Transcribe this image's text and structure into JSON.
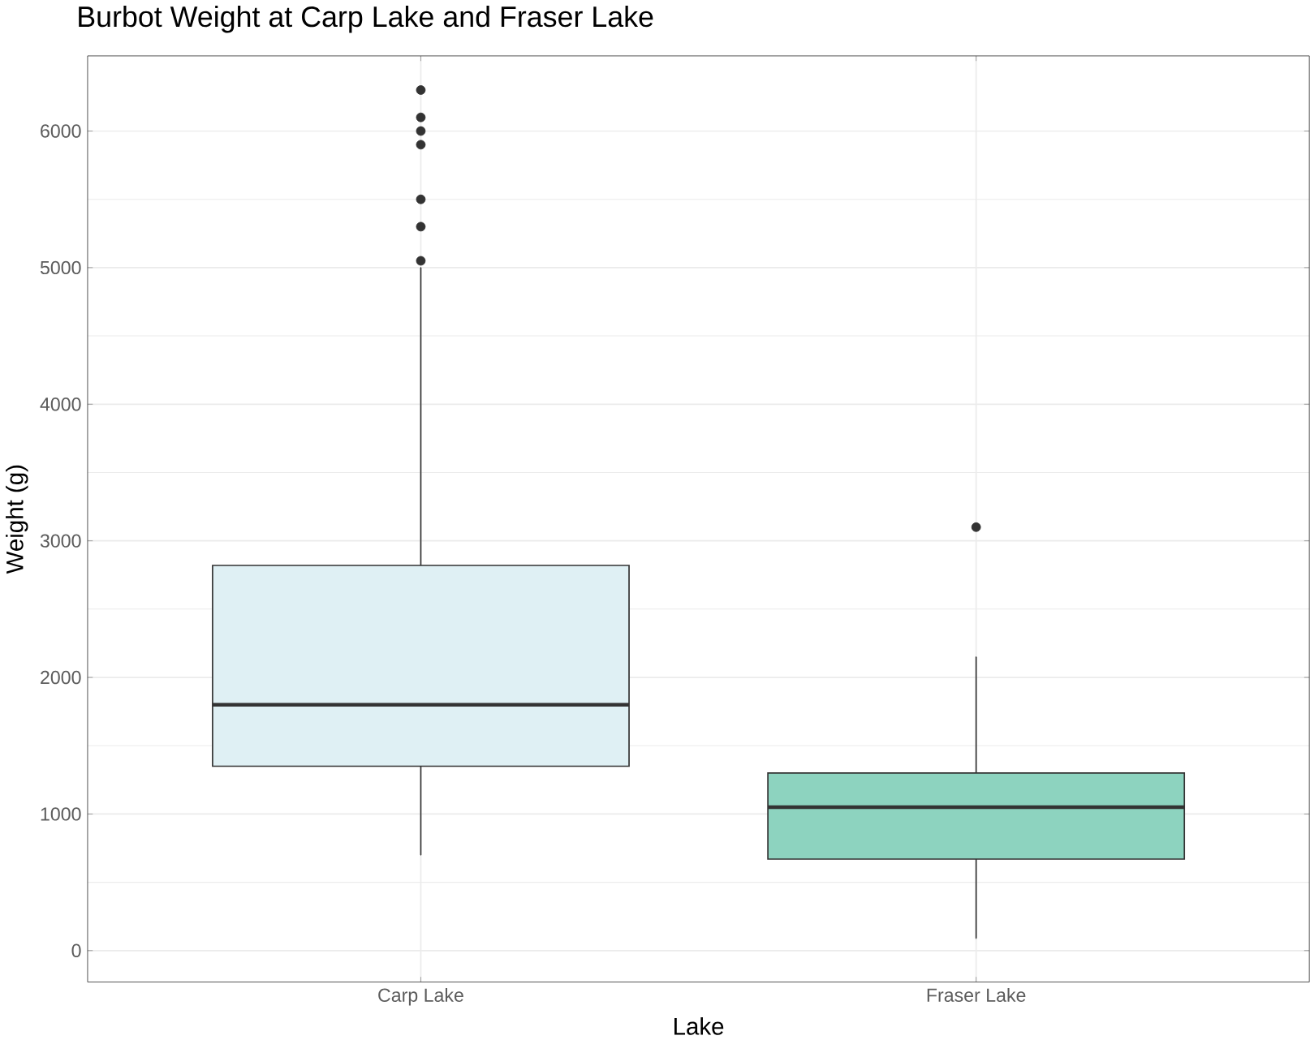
{
  "chart_data": {
    "type": "box",
    "title": "Burbot Weight at Carp Lake and Fraser Lake",
    "xlabel": "Lake",
    "ylabel": "Weight (g)",
    "categories": [
      "Carp Lake",
      "Fraser Lake"
    ],
    "colors": [
      "#dff0f4",
      "#8dd3bf"
    ],
    "boxes": [
      {
        "low": 700,
        "q1": 1350,
        "median": 1800,
        "q3": 2820,
        "high": 5000,
        "outliers": [
          5050,
          5300,
          5500,
          5900,
          6000,
          6100,
          6300
        ]
      },
      {
        "low": 90,
        "q1": 670,
        "median": 1050,
        "q3": 1300,
        "high": 2150,
        "outliers": [
          3100
        ]
      }
    ],
    "ylim": [
      -230,
      6550
    ],
    "yticks": [
      0,
      1000,
      2000,
      3000,
      4000,
      5000,
      6000
    ],
    "grid": true
  }
}
